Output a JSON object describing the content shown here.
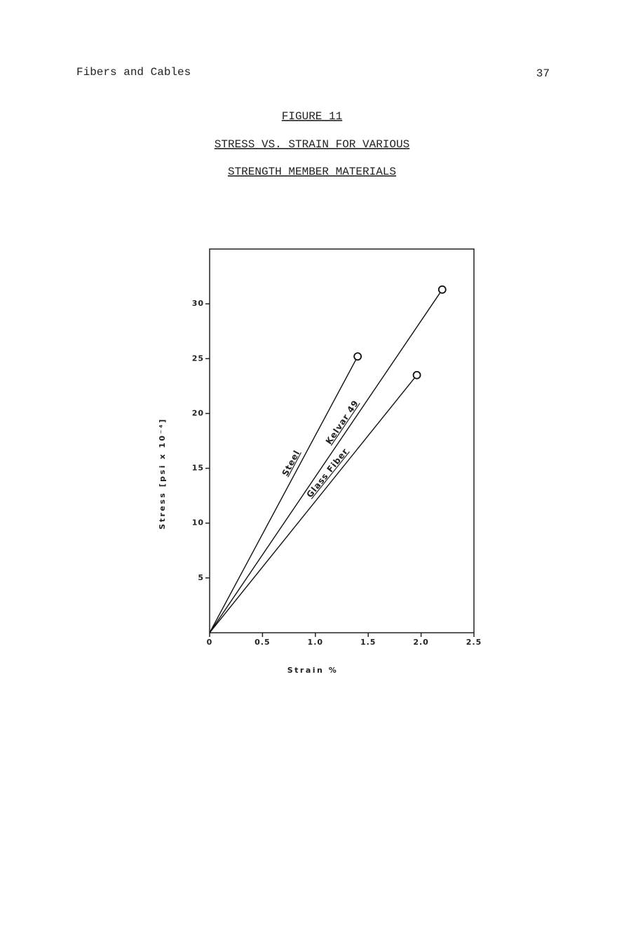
{
  "header": {
    "title": "Fibers and Cables",
    "page": "37"
  },
  "chart_data": {
    "type": "line",
    "title": "FIGURE 11",
    "subtitle": [
      "STRESS VS. STRAIN FOR VARIOUS",
      "STRENGTH MEMBER MATERIALS"
    ],
    "x_label": "Strain %",
    "y_label": "Stress [psi x 10⁻⁴]",
    "xlim": [
      0,
      2.5
    ],
    "ylim": [
      0,
      35
    ],
    "xticks": [
      0,
      0.5,
      {
        "value": 1,
        "label": "1.0"
      },
      1.5,
      {
        "value": 2,
        "label": "2.0"
      },
      2.5
    ],
    "yticks": [
      5,
      10,
      15,
      20,
      25,
      30
    ],
    "grid": false,
    "series": [
      {
        "name": "Steel",
        "color": "#111111",
        "x": [
          0,
          1.4
        ],
        "values": [
          0,
          25.2
        ]
      },
      {
        "name": "Kelvar 49",
        "color": "#111111",
        "x": [
          0,
          2.2
        ],
        "values": [
          0,
          31.3
        ]
      },
      {
        "name": "Glass Fiber",
        "color": "#111111",
        "x": [
          0,
          1.96
        ],
        "values": [
          0,
          23.5
        ]
      }
    ]
  }
}
